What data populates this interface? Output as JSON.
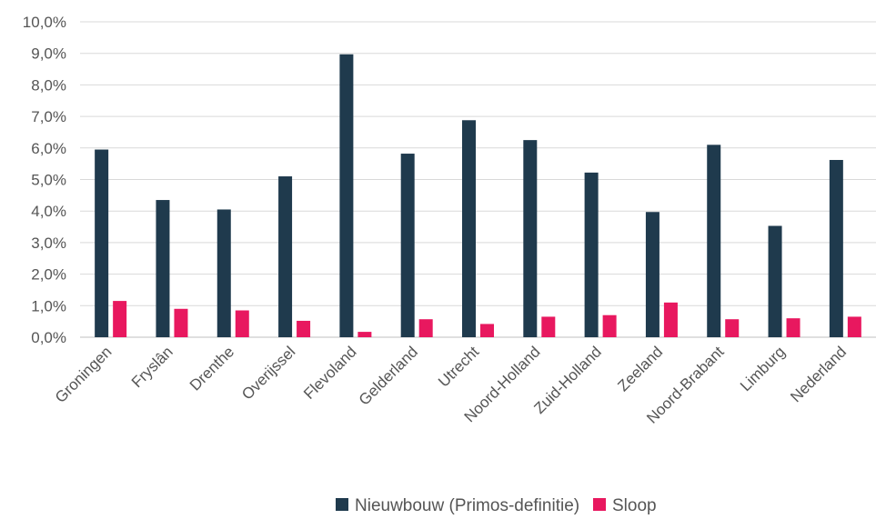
{
  "chart_data": {
    "type": "bar",
    "categories": [
      "Groningen",
      "Fryslân",
      "Drenthe",
      "Overijssel",
      "Flevoland",
      "Gelderland",
      "Utrecht",
      "Noord-Holland",
      "Zuid-Holland",
      "Zeeland",
      "Noord-Brabant",
      "Limburg",
      "Nederland"
    ],
    "series": [
      {
        "name": "Nieuwbouw (Primos-definitie)",
        "color": "#1f3a4d",
        "values": [
          5.95,
          4.35,
          4.05,
          5.1,
          8.97,
          5.82,
          6.88,
          6.25,
          5.22,
          3.97,
          6.1,
          3.53,
          5.62
        ]
      },
      {
        "name": "Sloop",
        "color": "#e8185f",
        "values": [
          1.15,
          0.9,
          0.85,
          0.52,
          0.17,
          0.57,
          0.42,
          0.65,
          0.7,
          1.1,
          0.57,
          0.6,
          0.65
        ]
      }
    ],
    "ylim": [
      0,
      10
    ],
    "yticks": [
      "0,0%",
      "1,0%",
      "2,0%",
      "3,0%",
      "4,0%",
      "5,0%",
      "6,0%",
      "7,0%",
      "8,0%",
      "9,0%",
      "10,0%"
    ],
    "grid": true,
    "legend": "bottom",
    "title": "",
    "xlabel": "",
    "ylabel": ""
  }
}
